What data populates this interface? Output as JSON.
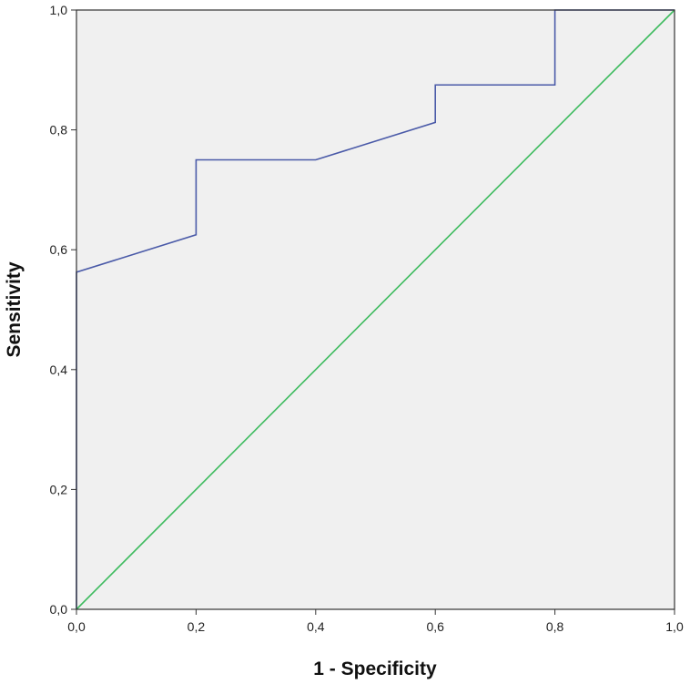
{
  "chart_data": {
    "type": "line",
    "xlabel": "1 - Specificity",
    "ylabel": "Sensitivity",
    "xlim": [
      0,
      1
    ],
    "ylim": [
      0,
      1
    ],
    "x_ticks": [
      "0,0",
      "0,2",
      "0,4",
      "0,6",
      "0,8",
      "1,0"
    ],
    "y_ticks": [
      "0,0",
      "0,2",
      "0,4",
      "0,6",
      "0,8",
      "1,0"
    ],
    "grid": false,
    "plot_background": "#f0f0f0",
    "series": [
      {
        "color": "#4a5aa8",
        "x": [
          0.0,
          0.0,
          0.2,
          0.2,
          0.4,
          0.6,
          0.6,
          0.8,
          0.8,
          1.0
        ],
        "y": [
          0.0,
          0.5625,
          0.625,
          0.75,
          0.75,
          0.8125,
          0.875,
          0.875,
          1.0,
          1.0
        ]
      },
      {
        "color": "#3dbb5e",
        "x": [
          0.0,
          1.0
        ],
        "y": [
          0.0,
          1.0
        ]
      }
    ]
  }
}
